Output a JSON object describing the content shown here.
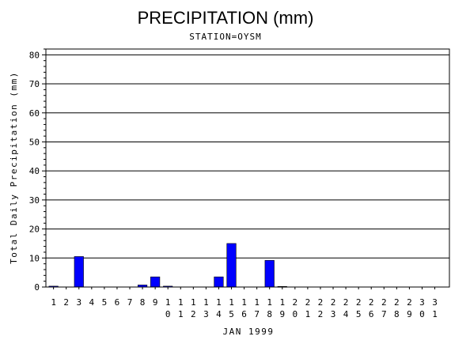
{
  "chart_data": {
    "type": "bar",
    "title": "PRECIPITATION (mm)",
    "subtitle": "STATION=OYSM",
    "xlabel": "JAN 1999",
    "ylabel": "Total Daily Precipitation (mm)",
    "ylim": [
      0,
      82
    ],
    "yticks": [
      0,
      10,
      20,
      30,
      40,
      50,
      60,
      70,
      80
    ],
    "grid": true,
    "bar_color": "#0000ff",
    "categories": [
      "1",
      "2",
      "3",
      "4",
      "5",
      "6",
      "7",
      "8",
      "9",
      "10",
      "11",
      "12",
      "13",
      "14",
      "15",
      "16",
      "17",
      "18",
      "19",
      "20",
      "21",
      "22",
      "23",
      "24",
      "25",
      "26",
      "27",
      "28",
      "29",
      "30",
      "31"
    ],
    "values": [
      0.3,
      0,
      10.5,
      0,
      0,
      0,
      0,
      0.7,
      3.5,
      0.3,
      0,
      0,
      0,
      3.5,
      15,
      0,
      0,
      9.2,
      0.2,
      0,
      0,
      0,
      0,
      0,
      0,
      0,
      0,
      0,
      0,
      0,
      0
    ]
  }
}
